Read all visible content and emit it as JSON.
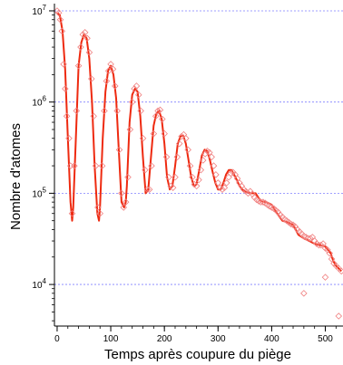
{
  "chart_data": {
    "type": "scatter",
    "title": "",
    "xlabel": "Temps après coupure du piège",
    "ylabel": "Nombre d'atomes",
    "xlim": [
      -5,
      533
    ],
    "ylim": [
      3500,
      12000000
    ],
    "yscale": "log",
    "grid": "horizontal dashed at each decade",
    "x_ticks": [
      0,
      100,
      200,
      300,
      400,
      500
    ],
    "y_ticks": [
      {
        "value": 10000,
        "base": "10",
        "exp": "4"
      },
      {
        "value": 100000,
        "base": "10",
        "exp": "5"
      },
      {
        "value": 1000000,
        "base": "10",
        "exp": "6"
      },
      {
        "value": 10000000,
        "base": "10",
        "exp": "7"
      }
    ],
    "colors": {
      "fit": "#ee2a10",
      "markers": "#f08080",
      "grid": "#8080ff"
    },
    "series": [
      {
        "type": "line",
        "x": [
          0,
          5,
          10,
          15,
          20,
          25,
          28,
          30,
          35,
          40,
          45,
          50,
          55,
          60,
          65,
          70,
          75,
          78,
          80,
          85,
          90,
          95,
          100,
          105,
          110,
          115,
          120,
          125,
          128,
          130,
          135,
          140,
          145,
          150,
          155,
          160,
          165,
          170,
          175,
          180,
          185,
          190,
          195,
          200,
          205,
          210,
          215,
          220,
          225,
          230,
          235,
          240,
          245,
          250,
          255,
          260,
          265,
          270,
          275,
          280,
          285,
          290,
          295,
          300,
          305,
          310,
          315,
          320,
          325,
          330,
          335,
          340,
          345,
          350,
          360,
          370,
          375,
          380,
          390,
          400,
          410,
          420,
          430,
          440,
          450,
          460,
          470,
          480,
          490,
          500,
          510,
          515,
          520,
          525,
          530
        ],
        "y": [
          9500000,
          9000000,
          6000000,
          2300000,
          400000,
          80000,
          50000,
          70000,
          400000,
          2500000,
          4500000,
          5500000,
          5000000,
          3000000,
          1000000,
          200000,
          60000,
          50000,
          70000,
          400000,
          1300000,
          2200000,
          2500000,
          2000000,
          1100000,
          300000,
          80000,
          70000,
          80000,
          120000,
          600000,
          1200000,
          1400000,
          1300000,
          700000,
          250000,
          100000,
          110000,
          250000,
          550000,
          750000,
          800000,
          650000,
          350000,
          150000,
          110000,
          120000,
          200000,
          350000,
          420000,
          430000,
          350000,
          230000,
          150000,
          120000,
          125000,
          180000,
          260000,
          300000,
          290000,
          230000,
          170000,
          130000,
          110000,
          110000,
          130000,
          160000,
          180000,
          180000,
          160000,
          140000,
          120000,
          110000,
          105000,
          100000,
          100000,
          90000,
          82000,
          80000,
          75000,
          60000,
          50000,
          48000,
          45000,
          35000,
          32000,
          30000,
          28000,
          27000,
          26000,
          22000,
          18000,
          16000,
          15000,
          14000
        ]
      },
      {
        "type": "scatter",
        "x": [
          0,
          3,
          6,
          9,
          12,
          15,
          18,
          22,
          25,
          28,
          32,
          36,
          40,
          44,
          48,
          52,
          56,
          60,
          64,
          68,
          72,
          76,
          80,
          84,
          88,
          92,
          96,
          100,
          104,
          108,
          112,
          116,
          120,
          124,
          128,
          132,
          136,
          140,
          144,
          148,
          152,
          156,
          160,
          164,
          168,
          172,
          176,
          180,
          184,
          188,
          192,
          196,
          200,
          204,
          208,
          212,
          216,
          220,
          224,
          228,
          232,
          236,
          240,
          244,
          248,
          252,
          256,
          260,
          264,
          268,
          272,
          276,
          280,
          284,
          288,
          292,
          296,
          300,
          304,
          308,
          312,
          316,
          320,
          324,
          328,
          332,
          336,
          340,
          344,
          348,
          352,
          356,
          360,
          364,
          368,
          372,
          376,
          380,
          384,
          388,
          392,
          396,
          400,
          404,
          408,
          412,
          416,
          420,
          424,
          428,
          432,
          436,
          440,
          444,
          448,
          452,
          456,
          460,
          464,
          468,
          472,
          476,
          480,
          484,
          488,
          492,
          496,
          500,
          504,
          508,
          512,
          516,
          520,
          525,
          530,
          460,
          500,
          525
        ],
        "y": [
          10000000,
          9500000,
          8000000,
          6000000,
          2600000,
          1400000,
          700000,
          400000,
          200000,
          60000,
          200000,
          800000,
          2500000,
          4000000,
          5500000,
          5800000,
          5000000,
          3500000,
          1800000,
          700000,
          200000,
          70000,
          60000,
          200000,
          800000,
          1700000,
          2200000,
          2600000,
          2300000,
          1500000,
          800000,
          300000,
          100000,
          70000,
          80000,
          150000,
          500000,
          1000000,
          1400000,
          1500000,
          1200000,
          800000,
          400000,
          180000,
          110000,
          110000,
          200000,
          450000,
          700000,
          800000,
          820000,
          650000,
          450000,
          250000,
          150000,
          120000,
          115000,
          150000,
          250000,
          350000,
          420000,
          440000,
          400000,
          300000,
          200000,
          150000,
          125000,
          120000,
          140000,
          180000,
          230000,
          270000,
          290000,
          280000,
          250000,
          200000,
          160000,
          130000,
          115000,
          110000,
          115000,
          130000,
          150000,
          165000,
          170000,
          160000,
          145000,
          130000,
          120000,
          110000,
          105000,
          100000,
          105000,
          98000,
          90000,
          85000,
          82000,
          80000,
          80000,
          78000,
          75000,
          72000,
          70000,
          68000,
          65000,
          62000,
          58000,
          55000,
          52000,
          50000,
          48000,
          46000,
          45000,
          43000,
          40000,
          38000,
          36000,
          34000,
          33000,
          32000,
          32000,
          33000,
          30000,
          28000,
          27000,
          27000,
          28000,
          25000,
          24000,
          22000,
          19000,
          17000,
          16000,
          15000,
          14000,
          8000,
          12000,
          4500
        ]
      }
    ]
  }
}
